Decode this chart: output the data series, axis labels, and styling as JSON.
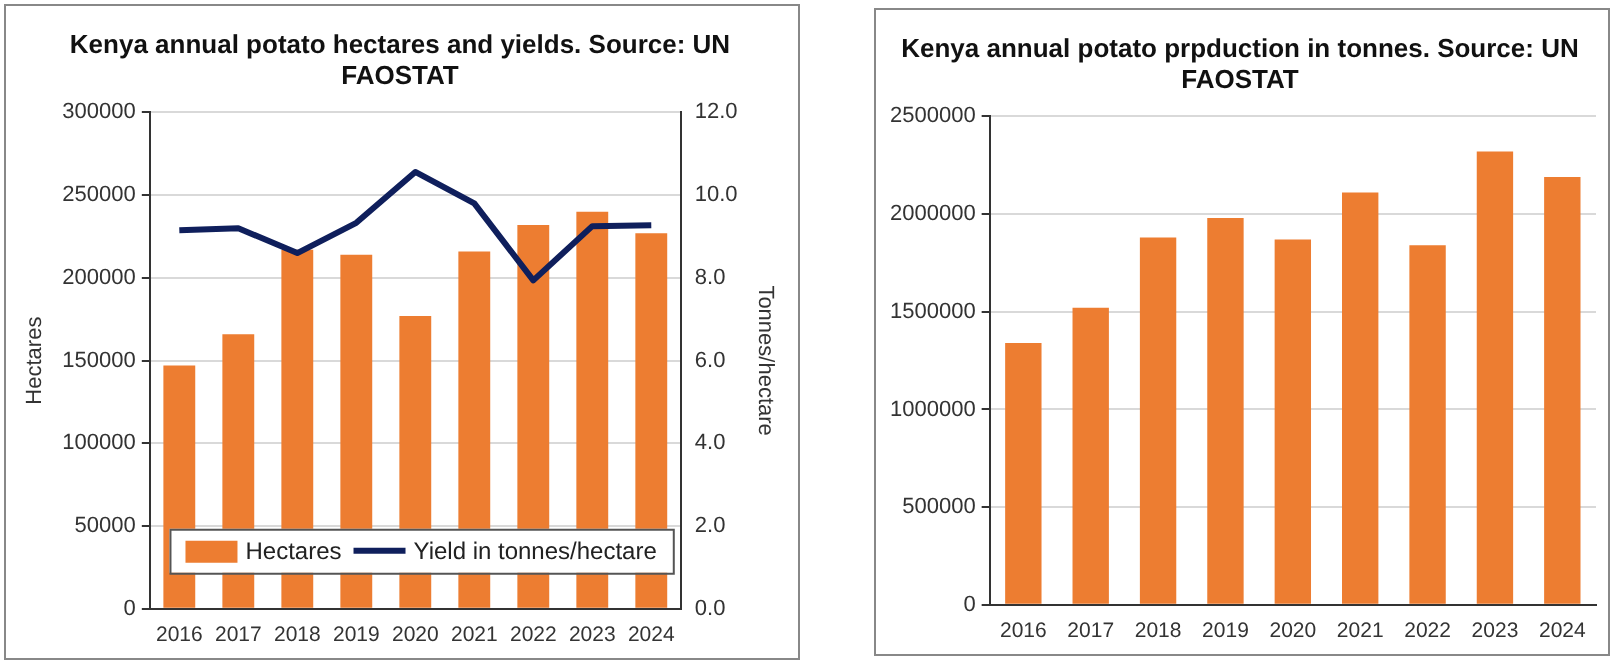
{
  "chart_data": [
    {
      "type": "bar",
      "title": "Kenya annual potato hectares and yields. Source: UN FAOSTAT",
      "ylabel": "Hectares",
      "y2label": "Tonnes/hectare",
      "categories": [
        "2016",
        "2017",
        "2018",
        "2019",
        "2020",
        "2021",
        "2022",
        "2023",
        "2024"
      ],
      "series": [
        {
          "name": "Hectares",
          "color": "#ed7d31",
          "values": [
            147000,
            166000,
            217000,
            214000,
            177000,
            216000,
            232000,
            240000,
            227000
          ]
        },
        {
          "name": "Yield in tonnes/hectare",
          "type": "line",
          "axis": "y2",
          "color": "#0f1f5c",
          "values": [
            9.15,
            9.2,
            8.6,
            9.33,
            10.56,
            9.8,
            7.94,
            9.25,
            9.27
          ]
        }
      ],
      "ylim": [
        0,
        300000
      ],
      "yticks": [
        0,
        50000,
        100000,
        150000,
        200000,
        250000,
        300000
      ],
      "y2lim": [
        0,
        12
      ],
      "y2ticks": [
        {
          "value": 0,
          "label": "0.0"
        },
        {
          "value": 2,
          "label": "2.0"
        },
        {
          "value": 4,
          "label": "4.0"
        },
        {
          "value": 6,
          "label": "6.0"
        },
        {
          "value": 8,
          "label": "8.0"
        },
        {
          "value": 10,
          "label": "10.0"
        },
        {
          "value": 12,
          "label": "12.0"
        }
      ],
      "grid": "y",
      "legend": "bottom right",
      "marker": "none"
    },
    {
      "type": "bar",
      "title": "Kenya annual potato prpduction in tonnes. Source: UN FAOSTAT",
      "categories": [
        "2016",
        "2017",
        "2018",
        "2019",
        "2020",
        "2021",
        "2022",
        "2023",
        "2024"
      ],
      "series": [
        {
          "color": "#ed7d31",
          "values": [
            1340000,
            1520000,
            1880000,
            1980000,
            1870000,
            2110000,
            1840000,
            2320000,
            2190000
          ]
        }
      ],
      "ylim": [
        0,
        2500000
      ],
      "yticks": [
        0,
        500000,
        1000000,
        1500000,
        2000000,
        2500000
      ],
      "grid": "y"
    }
  ]
}
